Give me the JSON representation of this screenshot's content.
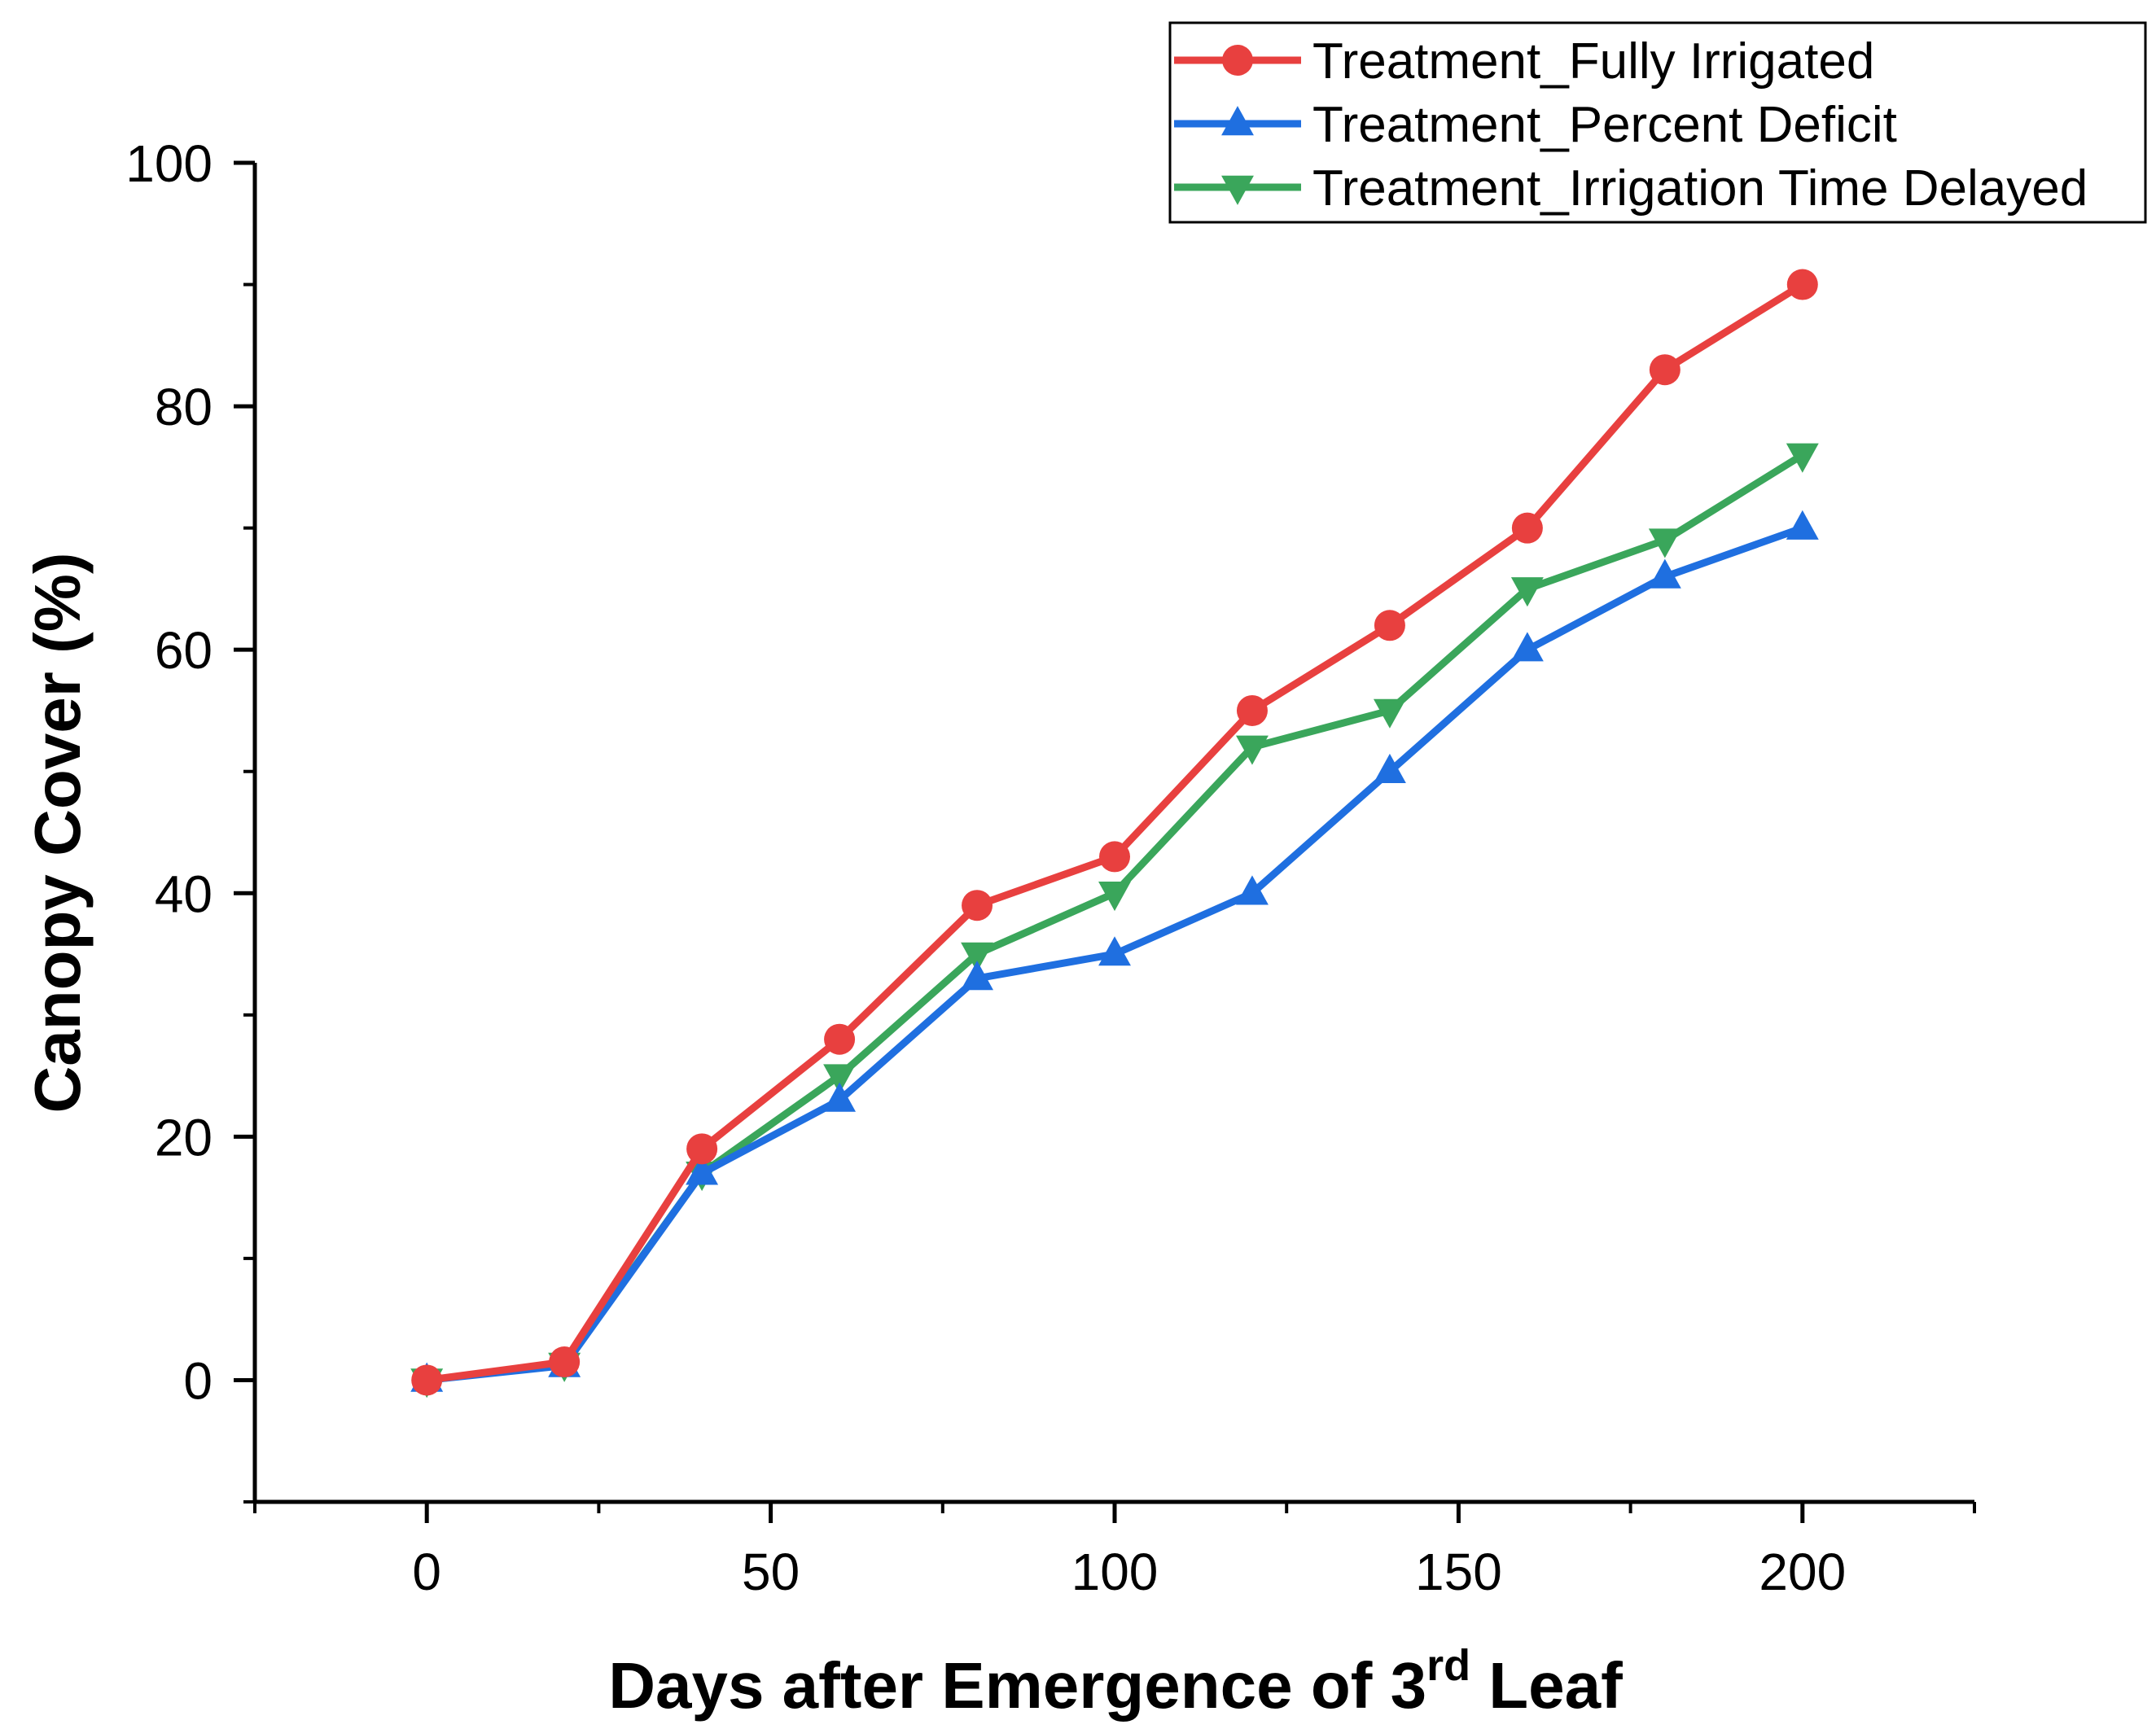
{
  "chart_data": {
    "type": "line",
    "title": "",
    "xlabel_main": "Days after Emergence of 3",
    "xlabel_sup": "rd",
    "xlabel_tail": " Leaf",
    "ylabel": "Canopy Cover (%)",
    "xlim": [
      -25,
      225
    ],
    "ylim": [
      -10,
      100
    ],
    "x_ticks": [
      0,
      50,
      100,
      150,
      200
    ],
    "x_tick_labels": [
      "0",
      "50",
      "100",
      "150",
      "200"
    ],
    "y_ticks": [
      0,
      20,
      40,
      60,
      80,
      100
    ],
    "y_tick_labels": [
      "0",
      "20",
      "40",
      "60",
      "80",
      "100"
    ],
    "x_minor_ticks": [
      -25,
      25,
      75,
      125,
      175,
      225
    ],
    "y_minor_ticks": [
      -10,
      10,
      30,
      50,
      70,
      90
    ],
    "grid": false,
    "legend_position": "top-right",
    "x": [
      0,
      20,
      40,
      60,
      80,
      100,
      120,
      140,
      160,
      180,
      200
    ],
    "series": [
      {
        "name": "Treatment_Fully Irrigated",
        "color": "#e8403f",
        "marker": "circle",
        "values": [
          0,
          1.5,
          19,
          28,
          39,
          43,
          55,
          62,
          70,
          83,
          90
        ]
      },
      {
        "name": "Treatment_Percent Deficit",
        "color": "#1f6fe0",
        "marker": "triangle-up",
        "values": [
          0,
          1.2,
          17,
          23,
          33,
          35,
          40,
          50,
          60,
          66,
          70
        ]
      },
      {
        "name": "Treatment_Irrigation Time Delayed",
        "color": "#3aa65b",
        "marker": "triangle-down",
        "values": [
          0,
          1.3,
          17,
          25,
          35,
          40,
          52,
          55,
          65,
          69,
          76
        ]
      }
    ]
  }
}
